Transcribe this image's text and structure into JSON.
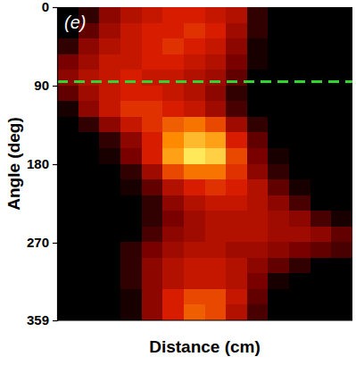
{
  "chart_data": {
    "type": "heatmap",
    "panel_label": "(e)",
    "x_label": "Distance (cm)",
    "y_label": "Angle (deg)",
    "ylim": [
      0,
      359
    ],
    "yticks": [
      0,
      90,
      180,
      270,
      359
    ],
    "tick_labels": "y",
    "zlim": [
      0,
      1
    ],
    "reference_lines": [
      {
        "value": 85,
        "color": "#2fd62f",
        "line_style": "dashed"
      }
    ],
    "cells": [
      [
        0,
        0.1,
        0.3,
        0.4,
        0.45,
        0.5,
        0.5,
        0.45,
        0.4,
        0.1,
        0,
        0,
        0,
        0
      ],
      [
        0,
        0.2,
        0.35,
        0.45,
        0.5,
        0.5,
        0.55,
        0.5,
        0.35,
        0.1,
        0,
        0,
        0,
        0
      ],
      [
        0.1,
        0.3,
        0.4,
        0.45,
        0.5,
        0.55,
        0.5,
        0.45,
        0.3,
        0.05,
        0,
        0,
        0,
        0
      ],
      [
        0.25,
        0.35,
        0.45,
        0.45,
        0.5,
        0.5,
        0.45,
        0.4,
        0.25,
        0.05,
        0,
        0,
        0,
        0
      ],
      [
        0.3,
        0.4,
        0.45,
        0.5,
        0.45,
        0.45,
        0.4,
        0.35,
        0.2,
        0,
        0,
        0,
        0,
        0
      ],
      [
        0.2,
        0.35,
        0.45,
        0.5,
        0.5,
        0.45,
        0.4,
        0.3,
        0.1,
        0,
        0,
        0,
        0,
        0
      ],
      [
        0.05,
        0.3,
        0.45,
        0.55,
        0.55,
        0.5,
        0.45,
        0.35,
        0.15,
        0,
        0,
        0,
        0,
        0
      ],
      [
        0,
        0.1,
        0.3,
        0.45,
        0.55,
        0.65,
        0.7,
        0.6,
        0.35,
        0.1,
        0,
        0,
        0,
        0
      ],
      [
        0,
        0,
        0.1,
        0.3,
        0.5,
        0.75,
        0.85,
        0.8,
        0.5,
        0.2,
        0,
        0,
        0,
        0
      ],
      [
        0,
        0,
        0.05,
        0.25,
        0.5,
        0.8,
        0.95,
        0.9,
        0.6,
        0.25,
        0.05,
        0,
        0,
        0
      ],
      [
        0,
        0,
        0,
        0.1,
        0.35,
        0.6,
        0.7,
        0.7,
        0.55,
        0.3,
        0.1,
        0,
        0,
        0
      ],
      [
        0,
        0,
        0,
        0.05,
        0.2,
        0.4,
        0.5,
        0.55,
        0.5,
        0.4,
        0.2,
        0.05,
        0,
        0
      ],
      [
        0,
        0,
        0,
        0,
        0.1,
        0.3,
        0.4,
        0.45,
        0.45,
        0.4,
        0.3,
        0.15,
        0,
        0
      ],
      [
        0,
        0,
        0,
        0,
        0.1,
        0.25,
        0.35,
        0.4,
        0.4,
        0.4,
        0.35,
        0.3,
        0.15,
        0.05
      ],
      [
        0,
        0,
        0,
        0,
        0.15,
        0.3,
        0.35,
        0.4,
        0.4,
        0.4,
        0.35,
        0.35,
        0.3,
        0.2
      ],
      [
        0,
        0,
        0,
        0.1,
        0.25,
        0.35,
        0.4,
        0.4,
        0.35,
        0.35,
        0.3,
        0.25,
        0.2,
        0.15
      ],
      [
        0,
        0,
        0,
        0.1,
        0.3,
        0.4,
        0.45,
        0.45,
        0.4,
        0.3,
        0.2,
        0.1,
        0,
        0
      ],
      [
        0,
        0,
        0,
        0.1,
        0.3,
        0.4,
        0.45,
        0.45,
        0.4,
        0.25,
        0.05,
        0,
        0,
        0
      ],
      [
        0,
        0,
        0,
        0.05,
        0.3,
        0.5,
        0.6,
        0.6,
        0.45,
        0.2,
        0,
        0,
        0,
        0
      ],
      [
        0,
        0,
        0,
        0.05,
        0.3,
        0.5,
        0.65,
        0.6,
        0.4,
        0.15,
        0,
        0,
        0,
        0
      ]
    ]
  }
}
